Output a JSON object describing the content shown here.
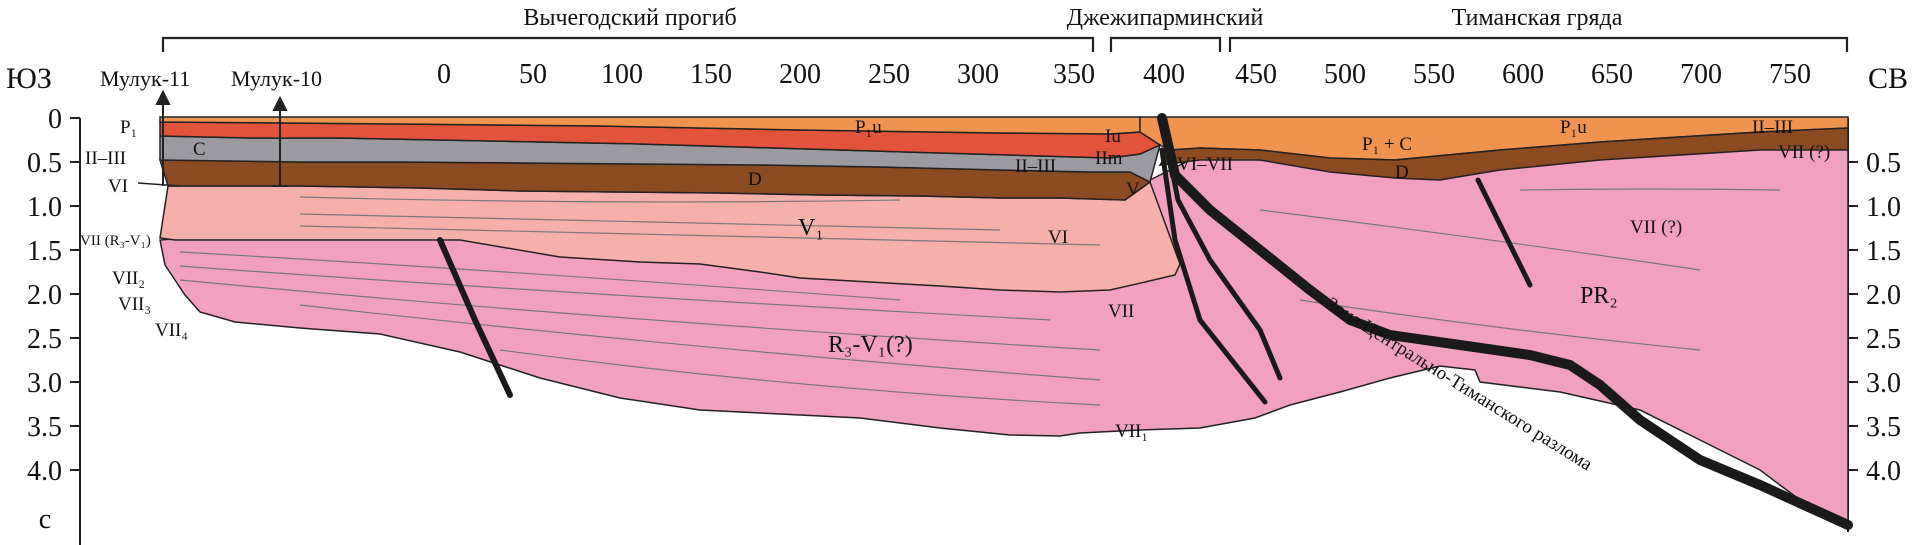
{
  "regions": [
    "Вычегодский прогиб",
    "Джежипарминский",
    "Тиманская гряда"
  ],
  "directions": {
    "left": "ЮЗ",
    "right": "СВ"
  },
  "wells": [
    "Мулук-11",
    "Мулук-10"
  ],
  "distance_ticks": [
    "0",
    "50",
    "100",
    "150",
    "200",
    "250",
    "300",
    "350",
    "400",
    "450",
    "500",
    "550",
    "600",
    "650",
    "700",
    "750"
  ],
  "time_ticks": [
    "0",
    "0.5",
    "1.0",
    "1.5",
    "2.0",
    "2.5",
    "3.0",
    "3.5",
    "4.0"
  ],
  "time_unit": "с",
  "left_horizons": [
    "P₁",
    "C",
    "II–III",
    "VI",
    "VII (R₃-V₁)",
    "VII₂",
    "VII₃",
    "VII₄"
  ],
  "layer_labels": {
    "p1u_a": "P₁u",
    "iu": "Iu",
    "iim": "IIm",
    "d_a": "D",
    "ii_iii_mid": "II–III",
    "v": "V",
    "v1": "V₁",
    "vi_mid": "VI",
    "vii_mid": "VII",
    "r3v1": "R₃-V₁(?)",
    "vii1": "VII₁",
    "vi_vii": "VI–VII",
    "p1c": "P₁ + C",
    "p1u_b": "P₁u",
    "ii_iii_right": "II–III",
    "vii_q_right": "VII (?)",
    "d_b": "D",
    "vii_q": "VII (?)",
    "pr2": "PR₂",
    "fault_zone": "Зона Центрально-Тиманского разлома"
  },
  "colors": {
    "orange": "#f0934e",
    "red": "#e1533a",
    "gray": "#9a9aa0",
    "brown": "#8a4a22",
    "salmon": "#f5b0aa",
    "pink": "#f1a0c0",
    "fault": "#1a1a1a"
  }
}
